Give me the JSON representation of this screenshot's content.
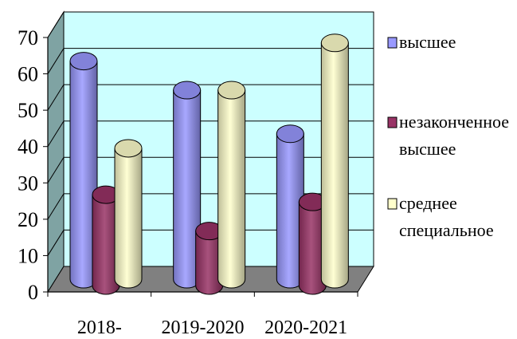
{
  "chart_data": {
    "type": "bar",
    "style": "3d-cylinder",
    "categories": [
      "2018-",
      "2019-2020",
      "2020-2021"
    ],
    "series": [
      {
        "name": "высшее",
        "values": [
          60,
          52,
          40
        ],
        "color": "#9999FF"
      },
      {
        "name": "незаконченное высшее",
        "values": [
          25,
          15,
          23
        ],
        "color": "#993366"
      },
      {
        "name": "среднее специальное",
        "values": [
          36,
          52,
          65
        ],
        "color": "#FFFFCC"
      }
    ],
    "yticks": [
      0,
      10,
      20,
      30,
      40,
      50,
      60,
      70
    ],
    "ylim": [
      0,
      70
    ],
    "grid": true,
    "legend": "right",
    "wall_color": "#CCFFFF",
    "floor_color": "#808080"
  }
}
